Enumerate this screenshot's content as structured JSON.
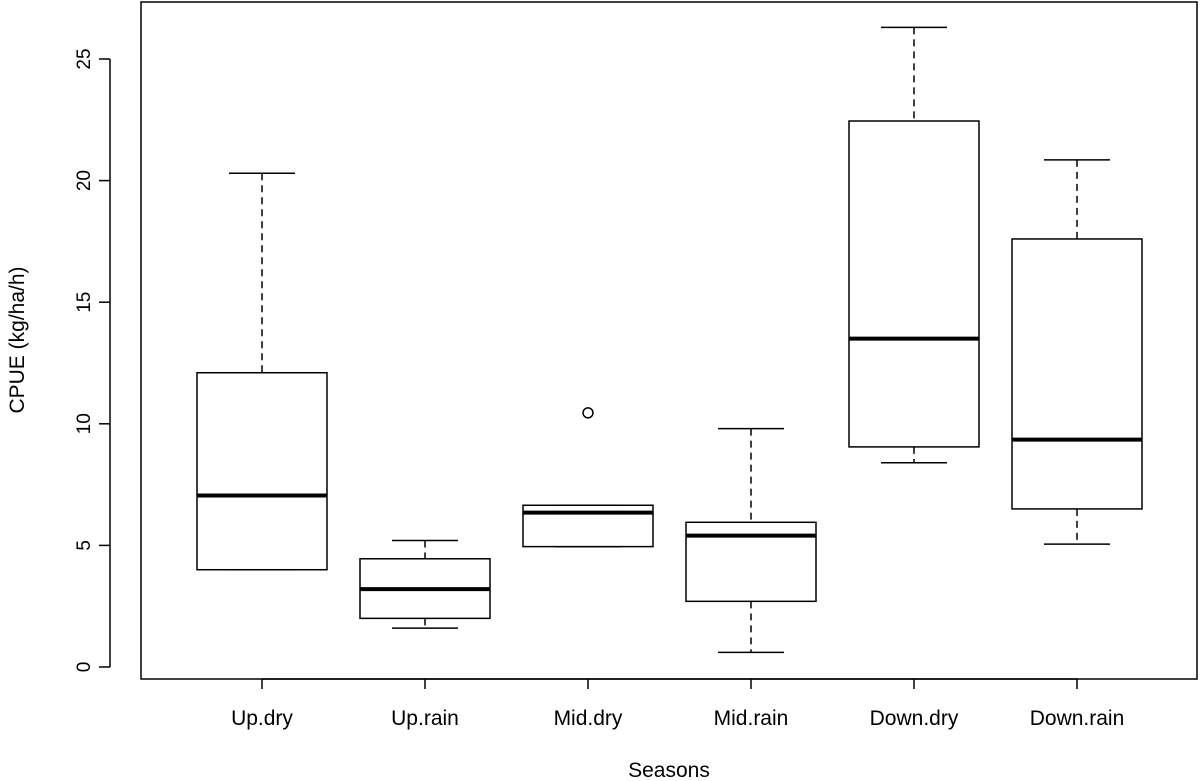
{
  "chart_data": {
    "type": "boxplot",
    "title": "",
    "xlabel": "Seasons",
    "ylabel": "CPUE (kg/ha/h)",
    "ylim": [
      -0.5,
      27
    ],
    "yticks": [
      0,
      5,
      10,
      15,
      20,
      25
    ],
    "yticks_labels": [
      "0",
      "5",
      "10",
      "15",
      "20",
      "25"
    ],
    "grid": false,
    "legend": "none",
    "categories": [
      "Up.dry",
      "Up.rain",
      "Mid.dry",
      "Mid.rain",
      "Down.dry",
      "Down.rain"
    ],
    "boxes": [
      {
        "category": "Up.dry",
        "whisker_low": 4.0,
        "q1": 4.0,
        "median": 7.05,
        "q3": 12.1,
        "whisker_high": 20.3,
        "outliers": []
      },
      {
        "category": "Up.rain",
        "whisker_low": 1.6,
        "q1": 2.0,
        "median": 3.2,
        "q3": 4.45,
        "whisker_high": 5.2,
        "outliers": []
      },
      {
        "category": "Mid.dry",
        "whisker_low": 4.95,
        "q1": 4.95,
        "median": 6.35,
        "q3": 6.65,
        "whisker_high": 6.65,
        "outliers": [
          10.45
        ]
      },
      {
        "category": "Mid.rain",
        "whisker_low": 0.6,
        "q1": 2.7,
        "median": 5.4,
        "q3": 5.95,
        "whisker_high": 9.8,
        "outliers": []
      },
      {
        "category": "Down.dry",
        "whisker_low": 8.4,
        "q1": 9.05,
        "median": 13.5,
        "q3": 22.45,
        "whisker_high": 26.3,
        "outliers": []
      },
      {
        "category": "Down.rain",
        "whisker_low": 5.05,
        "q1": 6.5,
        "median": 9.35,
        "q3": 17.6,
        "whisker_high": 20.85,
        "outliers": []
      }
    ],
    "colors": {
      "box_fill": "#ffffff",
      "stroke": "#000000",
      "background": "#ffffff"
    }
  }
}
